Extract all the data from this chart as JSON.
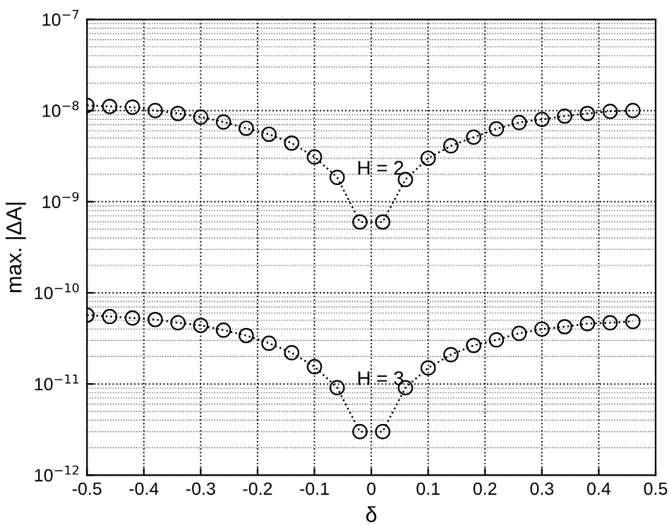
{
  "chart_data": {
    "type": "line",
    "xlabel": "δ",
    "ylabel": "max. |ΔA|",
    "x": [
      -0.5,
      -0.46,
      -0.42,
      -0.38,
      -0.34,
      -0.3,
      -0.26,
      -0.22,
      -0.18,
      -0.14,
      -0.1,
      -0.06,
      -0.02,
      0.02,
      0.06,
      0.1,
      0.14,
      0.18,
      0.22,
      0.26,
      0.3,
      0.34,
      0.38,
      0.42,
      0.46
    ],
    "series": [
      {
        "name": "H = 2",
        "color": "#000000",
        "values": [
          1.14e-08,
          1.11e-08,
          1.09e-08,
          1e-08,
          9.3e-09,
          8.5e-09,
          7.5e-09,
          6.4e-09,
          5.5e-09,
          4.4e-09,
          3.1e-09,
          1.85e-09,
          6e-10,
          6e-10,
          1.75e-09,
          3e-09,
          4.1e-09,
          5.1e-09,
          6.3e-09,
          7.4e-09,
          8e-09,
          8.7e-09,
          9.3e-09,
          9.8e-09,
          1e-08
        ]
      },
      {
        "name": "H = 3",
        "color": "#000000",
        "values": [
          5.7e-11,
          5.5e-11,
          5.3e-11,
          5.1e-11,
          4.7e-11,
          4.4e-11,
          3.9e-11,
          3.4e-11,
          2.8e-11,
          2.2e-11,
          1.55e-11,
          9.1e-12,
          3e-12,
          3e-12,
          9.1e-12,
          1.5e-11,
          2.1e-11,
          2.65e-11,
          3.05e-11,
          3.6e-11,
          4e-11,
          4.25e-11,
          4.6e-11,
          4.7e-11,
          4.85e-11
        ]
      }
    ],
    "log": "y",
    "xlim": [
      -0.5,
      0.5
    ],
    "xticks": [
      -0.5,
      -0.4,
      -0.3,
      -0.2,
      -0.1,
      0,
      0.1,
      0.2,
      0.3,
      0.4,
      0.5
    ],
    "ylim": [
      1e-12,
      1e-07
    ],
    "yticks": [
      {
        "value": 1e-12,
        "label": "10$^{−12}$"
      },
      {
        "value": 1e-11,
        "label": "10$^{−11}$"
      },
      {
        "value": 1e-10,
        "label": "10$^{−10}$"
      },
      {
        "value": 1e-09,
        "label": "10$^{−9}$"
      },
      {
        "value": 1e-08,
        "label": "10$^{−8}$"
      },
      {
        "value": 1e-07,
        "label": "10$^{−7}$"
      }
    ],
    "grid": true,
    "marker": "circle",
    "line_style": "dotted"
  }
}
